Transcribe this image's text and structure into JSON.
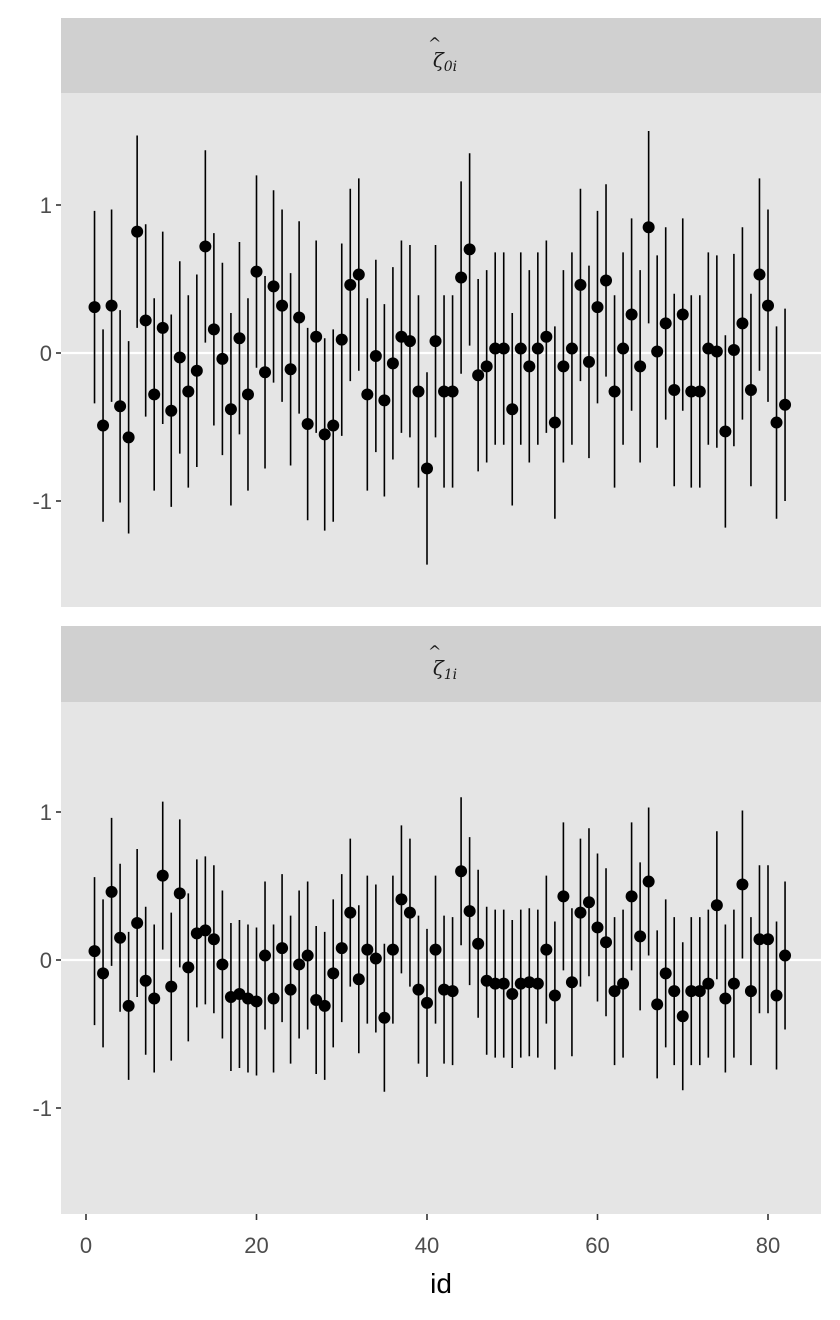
{
  "chart_data": {
    "type": "scatter",
    "subtype": "pointrange caterpillar (faceted)",
    "xlabel": "id",
    "ylabel": "",
    "xlim": [
      -3,
      86
    ],
    "x_ticks": [
      0,
      20,
      40,
      60,
      80
    ],
    "ylim": [
      -1.75,
      1.75
    ],
    "y_ticks": [
      1,
      0,
      -1
    ],
    "y_tick_labels": [
      "1",
      "0",
      "-1"
    ],
    "reference_line": 0,
    "grid": false,
    "legend": null,
    "colors": {
      "panel_bg": "#e5e5e5",
      "strip_bg": "#d0d0d0",
      "points": "#000000",
      "zero_line": "#ffffff",
      "tick_text": "#4d4d4d"
    },
    "facets": [
      {
        "label": "ζ̂0i",
        "label_parts": {
          "base": "ζ",
          "accent": "^",
          "subscript": "0i"
        },
        "half_width": 0.65,
        "x": [
          1,
          2,
          3,
          4,
          5,
          6,
          7,
          8,
          9,
          10,
          11,
          12,
          13,
          14,
          15,
          16,
          17,
          18,
          19,
          20,
          21,
          22,
          23,
          24,
          25,
          26,
          27,
          28,
          29,
          30,
          31,
          32,
          33,
          34,
          35,
          36,
          37,
          38,
          39,
          40,
          41,
          42,
          43,
          44,
          45,
          46,
          47,
          48,
          49,
          50,
          51,
          52,
          53,
          54,
          55,
          56,
          57,
          58,
          59,
          60,
          61,
          62,
          63,
          64,
          65,
          66,
          67,
          68,
          69,
          70,
          71,
          72,
          73,
          74,
          75,
          76,
          77,
          78,
          79,
          80,
          81,
          82
        ],
        "values": [
          0.31,
          -0.49,
          0.32,
          -0.36,
          -0.57,
          0.82,
          0.22,
          -0.28,
          0.17,
          -0.39,
          -0.03,
          -0.26,
          -0.12,
          0.72,
          0.16,
          -0.04,
          -0.38,
          0.1,
          -0.28,
          0.55,
          -0.13,
          0.45,
          0.32,
          -0.11,
          0.24,
          -0.48,
          0.11,
          -0.55,
          -0.49,
          0.09,
          0.46,
          0.53,
          -0.28,
          -0.02,
          -0.32,
          -0.07,
          0.11,
          0.08,
          -0.26,
          -0.78,
          0.08,
          -0.26,
          -0.26,
          0.51,
          0.7,
          -0.15,
          -0.09,
          0.03,
          0.03,
          -0.38,
          0.03,
          -0.09,
          0.03,
          0.11,
          -0.47,
          -0.09,
          0.03,
          0.46,
          -0.06,
          0.31,
          0.49,
          -0.26,
          0.03,
          0.26,
          -0.09,
          0.85,
          0.01,
          0.2,
          -0.25,
          0.26,
          -0.26,
          -0.26,
          0.03,
          0.01,
          -0.53,
          0.02,
          0.2,
          -0.25,
          0.53,
          0.32,
          -0.47,
          -0.35
        ]
      },
      {
        "label": "ζ̂1i",
        "label_parts": {
          "base": "ζ",
          "accent": "^",
          "subscript": "1i"
        },
        "half_width": 0.5,
        "x": [
          1,
          2,
          3,
          4,
          5,
          6,
          7,
          8,
          9,
          10,
          11,
          12,
          13,
          14,
          15,
          16,
          17,
          18,
          19,
          20,
          21,
          22,
          23,
          24,
          25,
          26,
          27,
          28,
          29,
          30,
          31,
          32,
          33,
          34,
          35,
          36,
          37,
          38,
          39,
          40,
          41,
          42,
          43,
          44,
          45,
          46,
          47,
          48,
          49,
          50,
          51,
          52,
          53,
          54,
          55,
          56,
          57,
          58,
          59,
          60,
          61,
          62,
          63,
          64,
          65,
          66,
          67,
          68,
          69,
          70,
          71,
          72,
          73,
          74,
          75,
          76,
          77,
          78,
          79,
          80,
          81,
          82
        ],
        "values": [
          0.06,
          -0.09,
          0.46,
          0.15,
          -0.31,
          0.25,
          -0.14,
          -0.26,
          0.57,
          -0.18,
          0.45,
          -0.05,
          0.18,
          0.2,
          0.14,
          -0.03,
          -0.25,
          -0.23,
          -0.26,
          -0.28,
          0.03,
          -0.26,
          0.08,
          -0.2,
          -0.03,
          0.03,
          -0.27,
          -0.31,
          -0.09,
          0.08,
          0.32,
          -0.13,
          0.07,
          0.01,
          -0.39,
          0.07,
          0.41,
          0.32,
          -0.2,
          -0.29,
          0.07,
          -0.2,
          -0.21,
          0.6,
          0.33,
          0.11,
          -0.14,
          -0.16,
          -0.16,
          -0.23,
          -0.16,
          -0.15,
          -0.16,
          0.07,
          -0.24,
          0.43,
          -0.15,
          0.32,
          0.39,
          0.22,
          0.12,
          -0.21,
          -0.16,
          0.43,
          0.16,
          0.53,
          -0.3,
          -0.09,
          -0.21,
          -0.38,
          -0.21,
          -0.21,
          -0.16,
          0.37,
          -0.26,
          -0.16,
          0.51,
          -0.21,
          0.14,
          0.14,
          -0.24,
          0.03
        ]
      }
    ]
  }
}
